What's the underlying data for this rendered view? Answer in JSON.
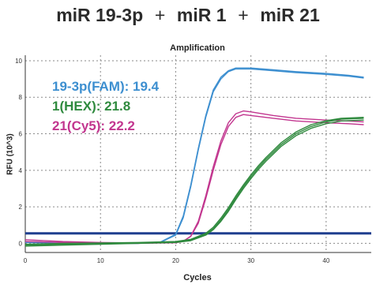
{
  "header": {
    "part1": "miR 19-3p",
    "plus1": "+",
    "part2": "miR 1",
    "plus2": "+",
    "part3": "miR 21"
  },
  "chart_data": {
    "type": "line",
    "title": "Amplification",
    "xlabel": "Cycles",
    "ylabel": "RFU (10^3)",
    "xlim": [
      0,
      46
    ],
    "ylim": [
      -0.5,
      10.3
    ],
    "xticks": [
      0,
      10,
      20,
      30,
      40
    ],
    "yticks": [
      0,
      2,
      4,
      6,
      8,
      10
    ],
    "grid": true,
    "threshold": 0.55,
    "threshold_color": "#1f3f8f",
    "legend_placement": "top-left",
    "annotations": [
      {
        "text": "19-3p(FAM): 19.4",
        "color": "#3d8fd0"
      },
      {
        "text": "1(HEX): 21.8",
        "color": "#2f8a3e"
      },
      {
        "text": "21(Cy5): 22.2",
        "color": "#c2368f"
      }
    ],
    "series": [
      {
        "color": "#3d8fd0",
        "x": [
          0,
          5,
          10,
          15,
          18,
          20,
          21,
          22,
          23,
          24,
          25,
          26,
          27,
          28,
          30,
          33,
          36,
          40,
          43,
          45
        ],
        "y": [
          0.05,
          0.02,
          0.0,
          0.0,
          0.08,
          0.5,
          1.5,
          3.2,
          5.2,
          7.0,
          8.4,
          9.1,
          9.45,
          9.6,
          9.6,
          9.5,
          9.4,
          9.3,
          9.2,
          9.1
        ]
      },
      {
        "color": "#3d8fd0",
        "x": [
          0,
          5,
          10,
          15,
          18,
          20,
          21,
          22,
          23,
          24,
          25,
          26,
          27,
          28,
          30,
          33,
          36,
          40,
          43,
          45
        ],
        "y": [
          0.1,
          0.05,
          0.02,
          0.0,
          0.06,
          0.45,
          1.4,
          3.1,
          5.1,
          6.9,
          8.3,
          9.0,
          9.4,
          9.55,
          9.55,
          9.45,
          9.35,
          9.25,
          9.15,
          9.05
        ]
      },
      {
        "color": "#c2368f",
        "x": [
          0,
          5,
          10,
          15,
          20,
          21,
          22,
          23,
          24,
          25,
          26,
          27,
          28,
          29,
          30,
          33,
          36,
          40,
          43,
          45
        ],
        "y": [
          0.1,
          0.05,
          0.02,
          0.0,
          0.03,
          0.1,
          0.4,
          1.2,
          2.6,
          4.2,
          5.6,
          6.6,
          7.1,
          7.25,
          7.2,
          7.0,
          6.85,
          6.75,
          6.7,
          6.65
        ]
      },
      {
        "color": "#c2368f",
        "x": [
          0,
          5,
          10,
          15,
          20,
          21,
          22,
          23,
          24,
          25,
          26,
          27,
          28,
          29,
          30,
          33,
          36,
          40,
          43,
          45
        ],
        "y": [
          0.2,
          0.1,
          0.05,
          0.02,
          0.05,
          0.12,
          0.38,
          1.1,
          2.45,
          4.0,
          5.4,
          6.4,
          6.9,
          7.05,
          7.0,
          6.85,
          6.7,
          6.6,
          6.55,
          6.5
        ]
      },
      {
        "color": "#2f8a3e",
        "x": [
          0,
          5,
          10,
          15,
          20,
          22,
          24,
          25,
          26,
          27,
          28,
          29,
          30,
          31,
          32,
          33,
          34,
          36,
          38,
          40,
          42,
          45
        ],
        "y": [
          -0.15,
          -0.1,
          -0.05,
          0.0,
          0.05,
          0.15,
          0.45,
          0.75,
          1.2,
          1.75,
          2.4,
          3.0,
          3.55,
          4.05,
          4.5,
          4.9,
          5.3,
          5.9,
          6.3,
          6.55,
          6.7,
          6.75
        ]
      },
      {
        "color": "#2f8a3e",
        "x": [
          0,
          5,
          10,
          15,
          20,
          22,
          24,
          25,
          26,
          27,
          28,
          29,
          30,
          31,
          32,
          33,
          34,
          36,
          38,
          40,
          42,
          45
        ],
        "y": [
          -0.1,
          -0.05,
          0.0,
          0.02,
          0.07,
          0.18,
          0.5,
          0.8,
          1.28,
          1.85,
          2.5,
          3.1,
          3.65,
          4.15,
          4.6,
          5.0,
          5.4,
          6.0,
          6.4,
          6.65,
          6.8,
          6.85
        ]
      },
      {
        "color": "#2f8a3e",
        "x": [
          0,
          5,
          10,
          15,
          20,
          22,
          24,
          25,
          26,
          27,
          28,
          29,
          30,
          31,
          32,
          33,
          34,
          36,
          38,
          40,
          42,
          45
        ],
        "y": [
          -0.05,
          0.0,
          0.02,
          0.05,
          0.1,
          0.22,
          0.55,
          0.88,
          1.38,
          1.95,
          2.6,
          3.2,
          3.75,
          4.25,
          4.7,
          5.1,
          5.5,
          6.1,
          6.5,
          6.72,
          6.85,
          6.9
        ]
      }
    ]
  }
}
